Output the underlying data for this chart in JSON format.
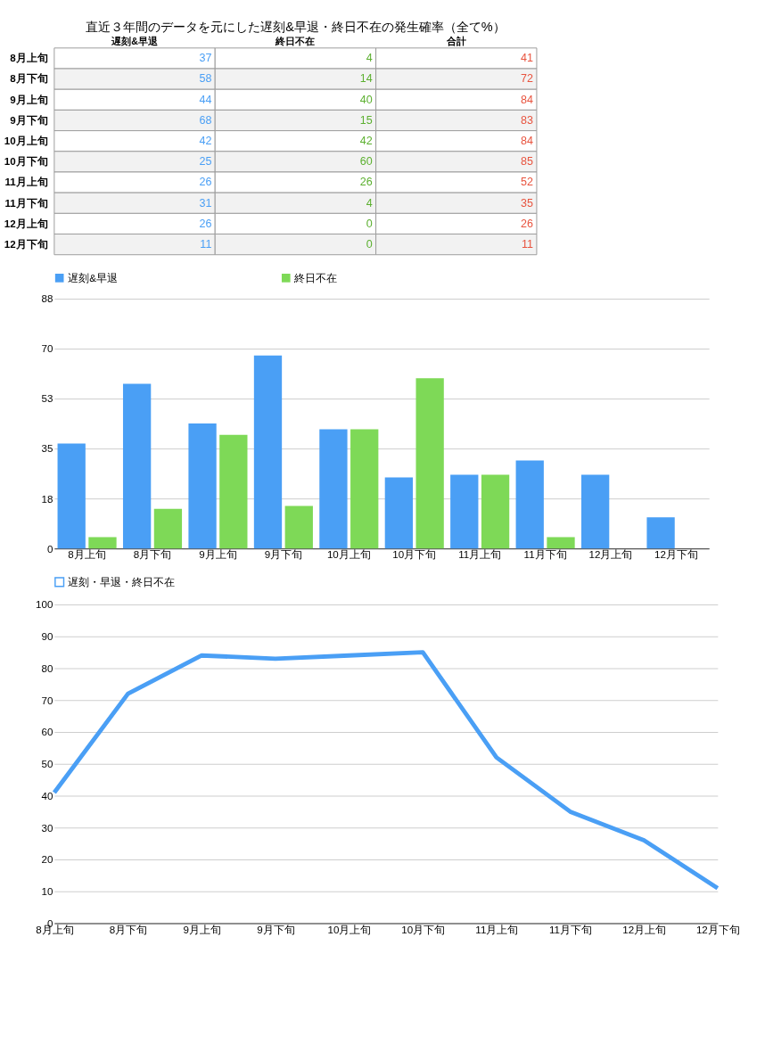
{
  "chart_data": [
    {
      "type": "heatmap",
      "title": "直近３年間のデータを元にした遅刻&早退・終日不在の発生確率（全て%）",
      "categories": [
        "遅刻&早退",
        "終日不在",
        "合計"
      ],
      "y_categories": [
        "8月上旬",
        "8月下旬",
        "9月上旬",
        "9月下旬",
        "10月上旬",
        "10月下旬",
        "11月上旬",
        "11月下旬",
        "12月上旬",
        "12月下旬"
      ],
      "colors": [
        "#4a9ff5",
        "#5cb030",
        "#e8543f"
      ],
      "data_labels": true,
      "cells": [
        [
          37,
          4,
          41
        ],
        [
          58,
          14,
          72
        ],
        [
          44,
          40,
          84
        ],
        [
          68,
          15,
          83
        ],
        [
          42,
          42,
          84
        ],
        [
          25,
          60,
          85
        ],
        [
          26,
          26,
          52
        ],
        [
          31,
          4,
          35
        ],
        [
          26,
          0,
          26
        ],
        [
          11,
          0,
          11
        ]
      ]
    },
    {
      "type": "bar",
      "categories": [
        "8月上旬",
        "8月下旬",
        "9月上旬",
        "9月下旬",
        "10月上旬",
        "10月下旬",
        "11月上旬",
        "11月下旬",
        "12月上旬",
        "12月下旬"
      ],
      "series": [
        {
          "name": "遅刻&早退",
          "color": "#4a9ff5",
          "values": [
            37,
            58,
            44,
            68,
            42,
            25,
            26,
            31,
            26,
            11
          ]
        },
        {
          "name": "終日不在",
          "color": "#7ed957",
          "values": [
            4,
            14,
            40,
            15,
            42,
            60,
            26,
            4,
            0,
            0
          ]
        }
      ],
      "ylim": [
        0,
        88
      ],
      "yticks": [
        0,
        {
          "value": 17.6,
          "label": "18"
        },
        {
          "value": 35.2,
          "label": "35"
        },
        {
          "value": 52.8,
          "label": "53"
        },
        {
          "value": 70.4,
          "label": "70"
        },
        88
      ],
      "grid": "y",
      "legend": "top"
    },
    {
      "type": "line",
      "categories": [
        "8月上旬",
        "8月下旬",
        "9月上旬",
        "9月下旬",
        "10月上旬",
        "10月下旬",
        "11月上旬",
        "11月下旬",
        "12月上旬",
        "12月下旬"
      ],
      "series": [
        {
          "name": "遅刻・早退・終日不在",
          "color": "#4a9ff5",
          "values": [
            41,
            72,
            84,
            83,
            84,
            85,
            52,
            35,
            26,
            11
          ]
        }
      ],
      "ylim": [
        0,
        100
      ],
      "yticks": [
        0,
        10,
        20,
        30,
        40,
        50,
        60,
        70,
        80,
        90,
        100
      ],
      "grid": "y",
      "legend": "top",
      "marker": "none",
      "line_style": "solid"
    }
  ]
}
